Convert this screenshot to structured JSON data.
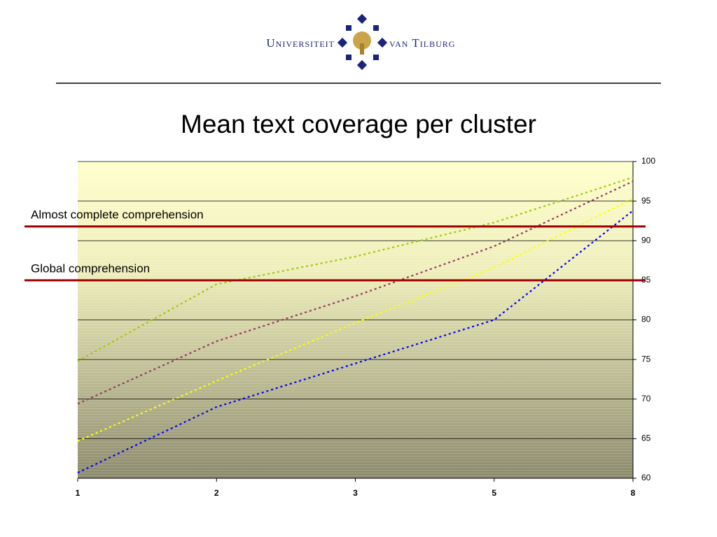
{
  "logo": {
    "left": "Universiteit",
    "right": "van Tilburg"
  },
  "chart_data": {
    "type": "line",
    "title": "Mean text coverage per cluster",
    "categories": [
      "1",
      "2",
      "3",
      "5",
      "8"
    ],
    "series": [
      {
        "color": "#99cc00",
        "values": [
          74.8,
          84.5,
          88,
          92.3,
          98
        ]
      },
      {
        "color": "#993366",
        "values": [
          69.4,
          77.3,
          83,
          89.3,
          97.5
        ]
      },
      {
        "color": "#ffff00",
        "values": [
          64.7,
          72.3,
          79.6,
          86.6,
          95.3
        ]
      },
      {
        "color": "#0000ff",
        "values": [
          60.7,
          69,
          74.5,
          80,
          93.8
        ]
      }
    ],
    "ylim": [
      60,
      100
    ],
    "yticks": [
      60,
      65,
      70,
      75,
      80,
      85,
      90,
      95,
      100
    ],
    "grid": true,
    "annotations": [
      {
        "text": "Almost complete comprehension",
        "value": 91.8,
        "color": "#a00000"
      },
      {
        "text": "Global comprehension",
        "value": 85,
        "color": "#a00000"
      }
    ]
  }
}
